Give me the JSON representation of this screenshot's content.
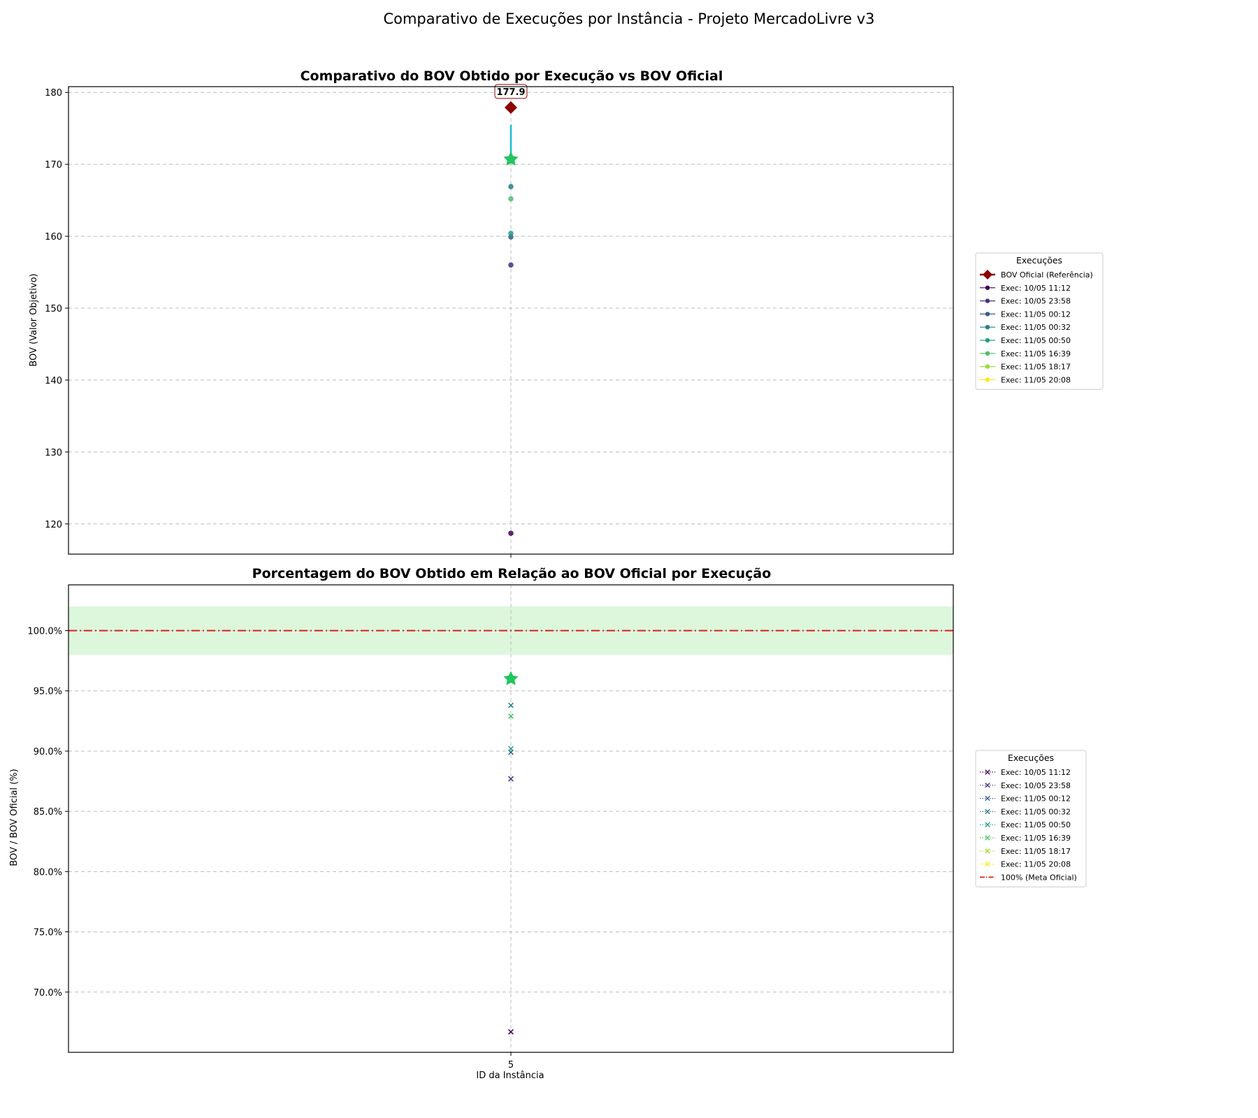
{
  "figure": {
    "suptitle": "Comparativo de Execuções por Instância - Projeto MercadoLivre v3"
  },
  "chart_data": [
    {
      "type": "scatter",
      "title": "Comparativo do BOV Obtido por Execução vs BOV Oficial",
      "xlabel": "",
      "ylabel": "BOV (Valor Objetivo)",
      "x_categories": [
        "5"
      ],
      "ylim": [
        115.8,
        180.8
      ],
      "yticks": [
        120,
        130,
        140,
        150,
        160,
        170,
        180
      ],
      "grid": true,
      "legend": {
        "title": "Execuções",
        "placement": "outside-right"
      },
      "reference": {
        "name": "BOV Oficial (Referência)",
        "x": "5",
        "value": 177.9,
        "label": "177.9",
        "color": "#8b0000"
      },
      "series": [
        {
          "name": "Exec: 10/05 11:12",
          "color": "#440154",
          "values": [
            118.7
          ]
        },
        {
          "name": "Exec: 10/05 23:58",
          "color": "#46327e",
          "values": [
            156.0
          ]
        },
        {
          "name": "Exec: 11/05 00:12",
          "color": "#365c8d",
          "values": [
            159.9
          ]
        },
        {
          "name": "Exec: 11/05 00:32",
          "color": "#277f8e",
          "values": [
            166.9
          ]
        },
        {
          "name": "Exec: 11/05 00:50",
          "color": "#1fa187",
          "values": [
            160.4
          ]
        },
        {
          "name": "Exec: 11/05 16:39",
          "color": "#4ac16d",
          "values": [
            165.2
          ]
        },
        {
          "name": "Exec: 11/05 18:17",
          "color": "#a0da39",
          "values": [
            170.7
          ]
        },
        {
          "name": "Exec: 11/05 20:08",
          "color": "#fde725",
          "values": [
            170.7
          ]
        }
      ],
      "best": {
        "x": "5",
        "value": 170.7,
        "color": "#22c55e"
      },
      "error_bar": {
        "x": "5",
        "low": 170.7,
        "high": 175.5,
        "color": "#17becf"
      }
    },
    {
      "type": "scatter",
      "title": "Porcentagem do BOV Obtido em Relação ao BOV Oficial por Execução",
      "xlabel": "ID da Instância",
      "ylabel": "BOV / BOV Oficial (%)",
      "x_categories": [
        "5"
      ],
      "ylim": [
        65.0,
        103.8
      ],
      "yticks": [
        70,
        75,
        80,
        85,
        90,
        95,
        100
      ],
      "ytick_labels": [
        "70.0%",
        "75.0%",
        "80.0%",
        "85.0%",
        "90.0%",
        "95.0%",
        "100.0%"
      ],
      "grid": true,
      "legend": {
        "title": "Execuções",
        "placement": "outside-right"
      },
      "band": {
        "low": 98,
        "high": 102,
        "color": "#dcf7dc"
      },
      "reference_line": {
        "name": "100% (Meta Oficial)",
        "value": 100,
        "color": "#e41a1c"
      },
      "series": [
        {
          "name": "Exec: 10/05 11:12",
          "color": "#440154",
          "values": [
            66.7
          ]
        },
        {
          "name": "Exec: 10/05 23:58",
          "color": "#46327e",
          "values": [
            87.7
          ]
        },
        {
          "name": "Exec: 11/05 00:12",
          "color": "#365c8d",
          "values": [
            89.9
          ]
        },
        {
          "name": "Exec: 11/05 00:32",
          "color": "#277f8e",
          "values": [
            93.8
          ]
        },
        {
          "name": "Exec: 11/05 00:50",
          "color": "#1fa187",
          "values": [
            90.2
          ]
        },
        {
          "name": "Exec: 11/05 16:39",
          "color": "#4ac16d",
          "values": [
            92.9
          ]
        },
        {
          "name": "Exec: 11/05 18:17",
          "color": "#a0da39",
          "values": [
            96.0
          ]
        },
        {
          "name": "Exec: 11/05 20:08",
          "color": "#fde725",
          "values": [
            96.0
          ]
        }
      ],
      "best": {
        "x": "5",
        "value": 96.0,
        "color": "#22c55e"
      }
    }
  ]
}
